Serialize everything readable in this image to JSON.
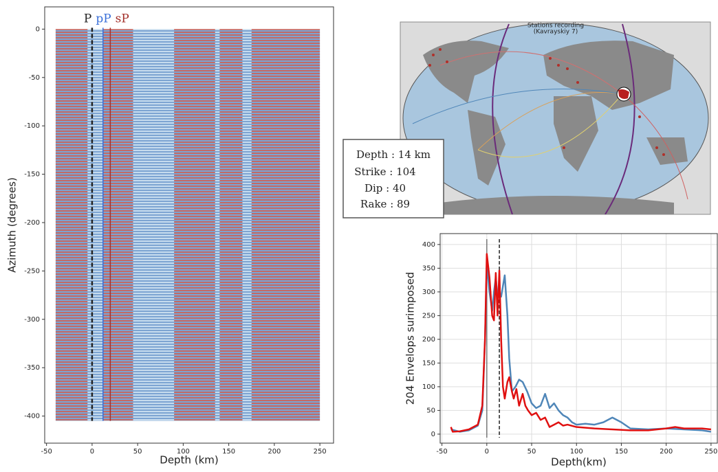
{
  "chart_data": [
    {
      "type": "wiggle",
      "xlabel": "Depth (km)",
      "ylabel": "Azimuth (degrees)",
      "xlim": [
        -52,
        265
      ],
      "xticks": [
        -50,
        0,
        50,
        100,
        150,
        200,
        250
      ],
      "ylim": [
        -428,
        23
      ],
      "yticks": [
        0,
        -50,
        -100,
        -150,
        -200,
        -250,
        -300,
        -350,
        -400
      ],
      "azimuth_range": [
        0,
        -405
      ],
      "trace_color": "#4a7fc0",
      "zone_color": "#c0392b",
      "red_zones": [
        [
          -40,
          -5
        ],
        [
          12,
          45
        ],
        [
          90,
          135
        ],
        [
          140,
          165
        ],
        [
          175,
          250
        ]
      ],
      "phases": [
        {
          "name": "P",
          "x": 0,
          "color": "#222222",
          "style": "dashed"
        },
        {
          "name": "pP",
          "x": 12,
          "color": "#3a6fd8",
          "style": "solid"
        },
        {
          "name": "sP",
          "x": 20,
          "color": "#a3302a",
          "style": "solid"
        }
      ]
    },
    {
      "type": "line",
      "xlabel": "Depth(km)",
      "ylabel": "204  Envelops surimposed",
      "xlim": [
        -52,
        257
      ],
      "xticks": [
        -50,
        0,
        50,
        100,
        150,
        200,
        250
      ],
      "ylim": [
        -19,
        423
      ],
      "yticks": [
        0,
        50,
        100,
        150,
        200,
        250,
        300,
        350,
        400
      ],
      "grid": true,
      "reference_lines": [
        {
          "x": 0,
          "style": "solid",
          "color": "#777777"
        },
        {
          "x": 14,
          "style": "dashed",
          "color": "#222222"
        }
      ],
      "series": [
        {
          "color": "#4f86b8",
          "x": [
            -40,
            -30,
            -20,
            -10,
            -5,
            -2,
            0,
            3,
            6,
            8,
            10,
            12,
            14,
            16,
            20,
            23,
            25,
            28,
            32,
            36,
            40,
            45,
            50,
            55,
            60,
            65,
            70,
            75,
            80,
            85,
            90,
            95,
            100,
            110,
            120,
            130,
            140,
            150,
            160,
            180,
            200,
            220,
            240,
            250
          ],
          "values": [
            10,
            5,
            8,
            18,
            50,
            200,
            360,
            300,
            260,
            300,
            330,
            290,
            300,
            290,
            335,
            250,
            160,
            90,
            100,
            115,
            110,
            90,
            65,
            55,
            60,
            85,
            55,
            65,
            50,
            40,
            35,
            25,
            20,
            22,
            20,
            25,
            35,
            25,
            12,
            10,
            12,
            10,
            8,
            5
          ]
        },
        {
          "color": "#e01010",
          "x": [
            -40,
            -38,
            -30,
            -20,
            -10,
            -5,
            -2,
            0,
            3,
            6,
            8,
            10,
            12,
            14,
            16,
            18,
            20,
            23,
            25,
            28,
            30,
            33,
            36,
            40,
            43,
            46,
            50,
            55,
            60,
            65,
            70,
            75,
            80,
            85,
            90,
            100,
            120,
            140,
            160,
            180,
            200,
            210,
            220,
            240,
            250
          ],
          "values": [
            15,
            5,
            6,
            10,
            20,
            60,
            200,
            380,
            330,
            250,
            240,
            340,
            250,
            345,
            200,
            100,
            75,
            110,
            120,
            90,
            75,
            95,
            60,
            85,
            60,
            50,
            40,
            45,
            30,
            35,
            15,
            20,
            25,
            18,
            20,
            15,
            12,
            10,
            8,
            8,
            12,
            15,
            12,
            12,
            10
          ]
        }
      ]
    }
  ],
  "map": {
    "title": "Stations recording",
    "subtitle": "(Kavrayskiy 7)"
  },
  "info_box": {
    "lines": [
      "Depth : 14 km",
      "Strike : 104",
      "Dip : 40",
      "Rake : 89"
    ]
  }
}
